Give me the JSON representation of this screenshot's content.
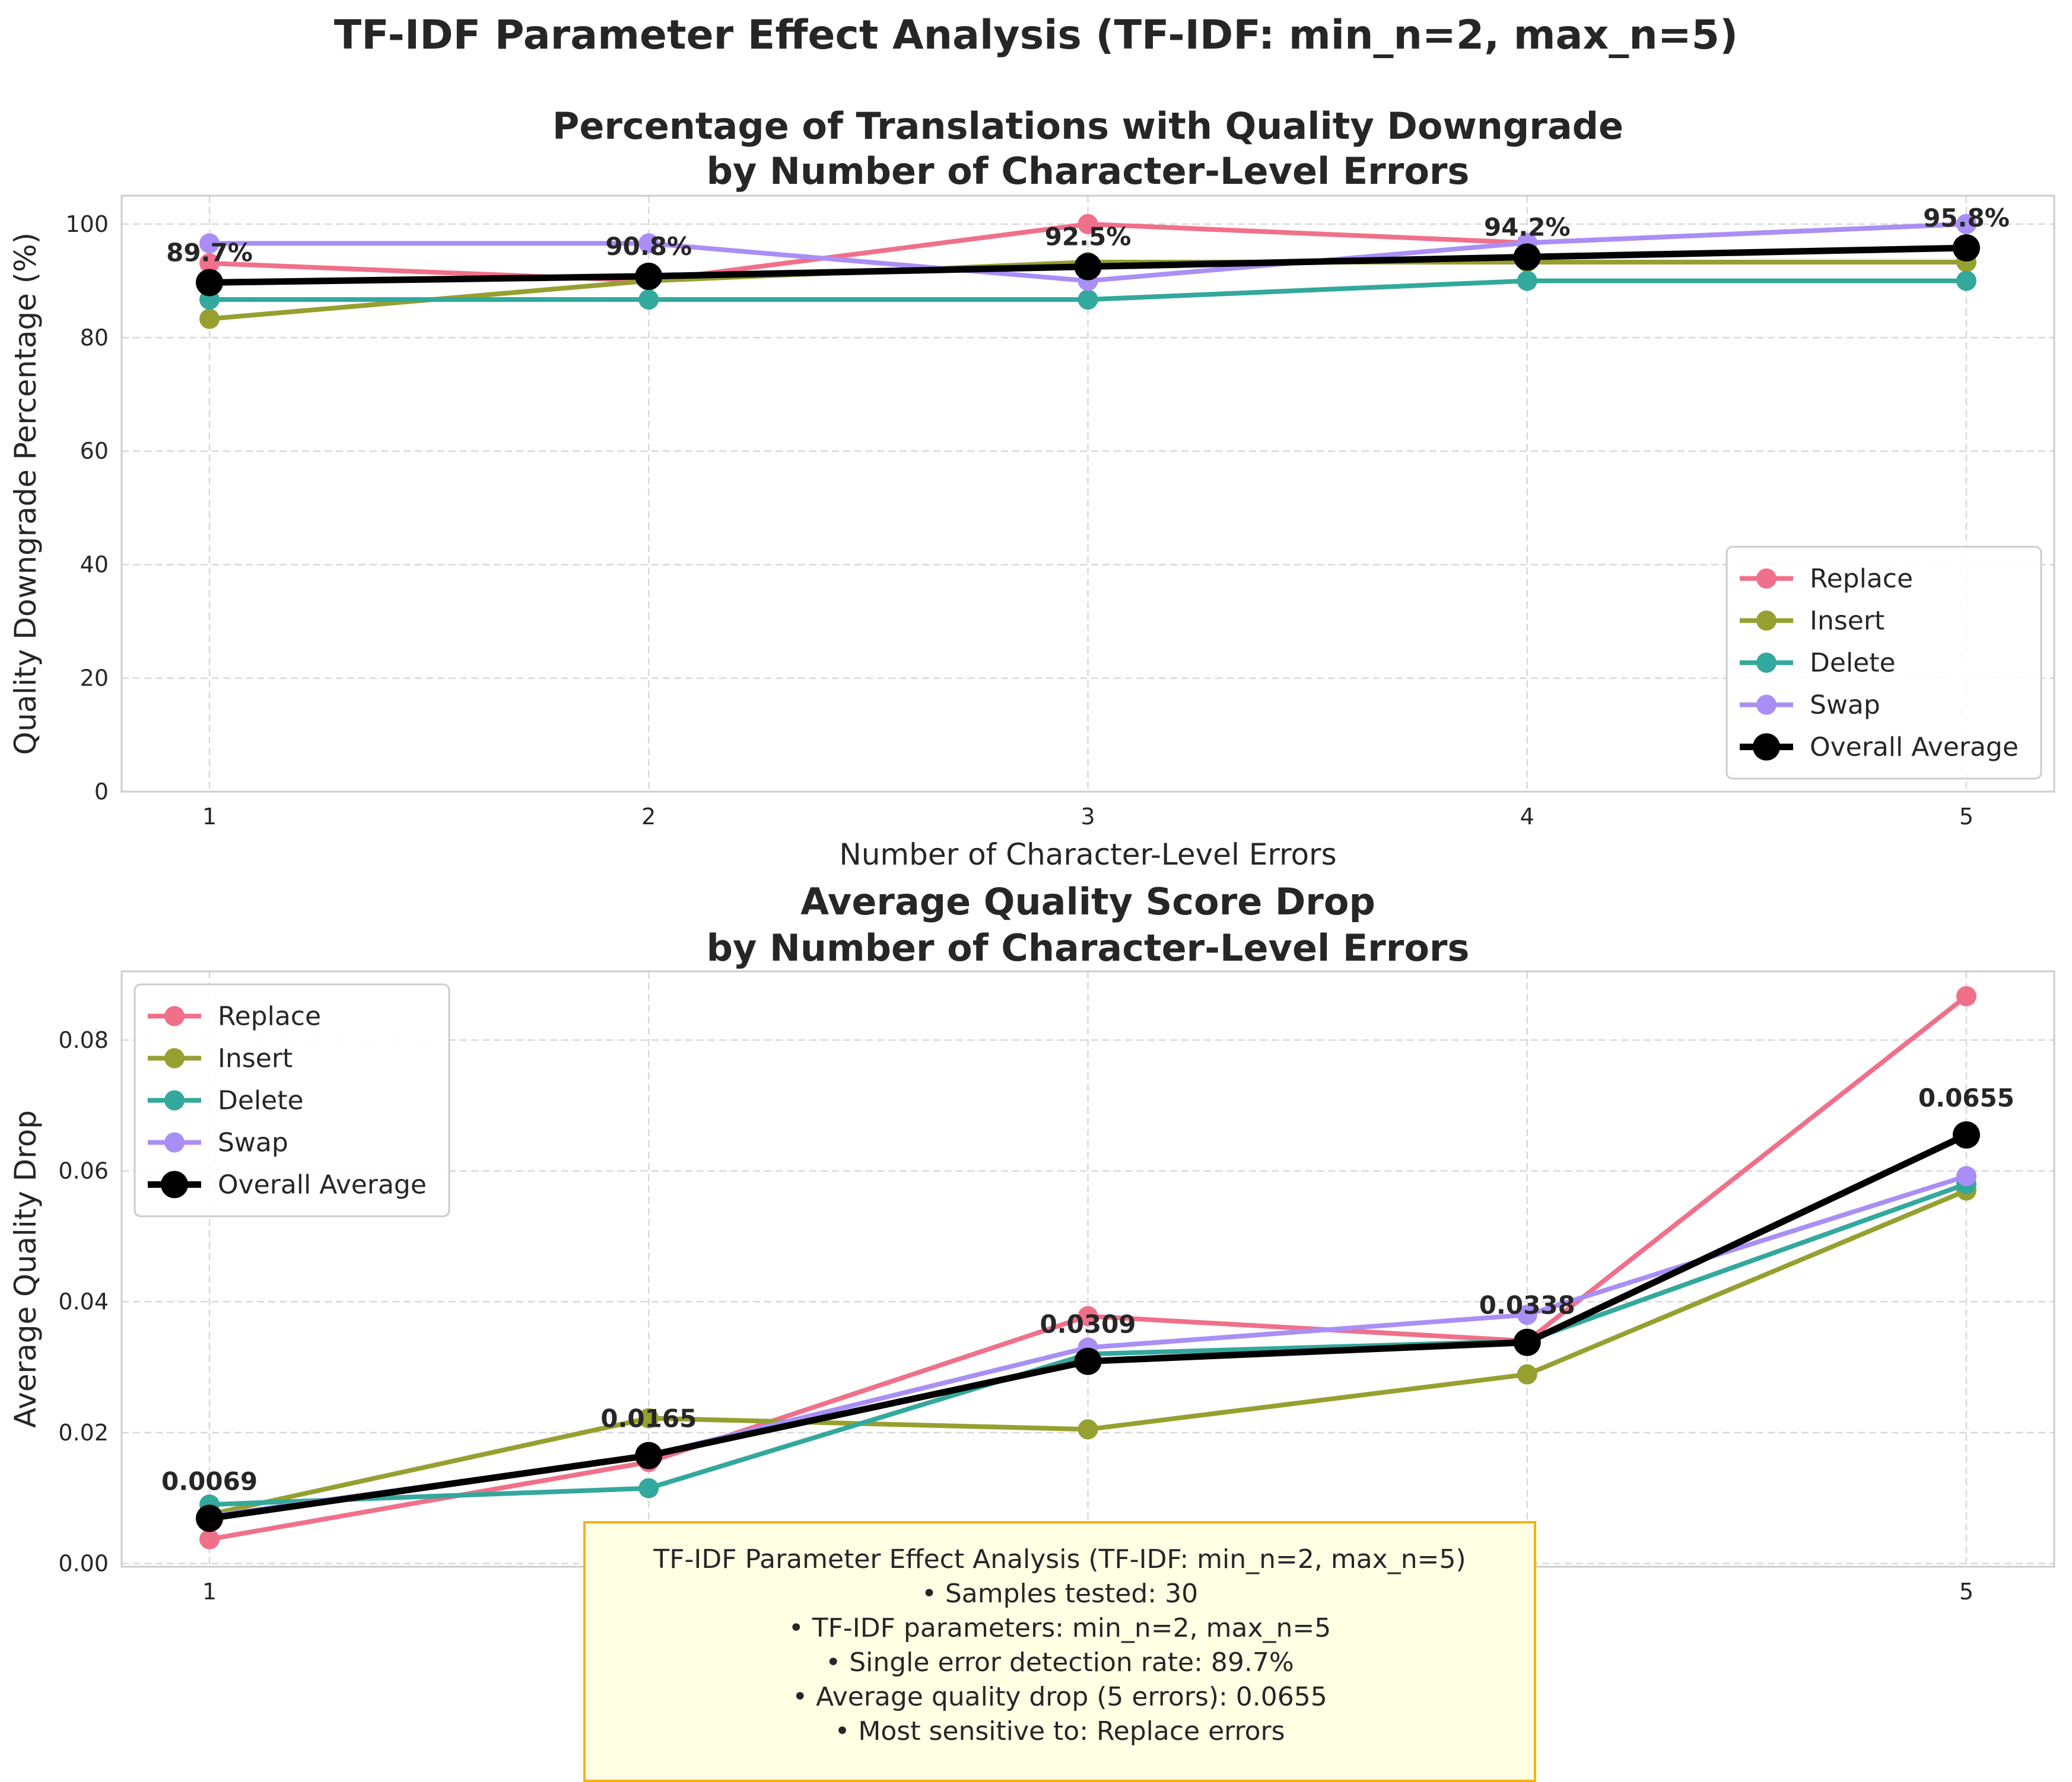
{
  "figure": {
    "suptitle": "TF-IDF Parameter Effect Analysis (TF-IDF: min_n=2, max_n=5)"
  },
  "chart_data": [
    {
      "type": "line",
      "title": "Percentage of Translations with Quality Downgrade\nby Number of Character-Level Errors",
      "title_lines": [
        "Percentage of Translations with Quality Downgrade",
        "by Number of Character-Level Errors"
      ],
      "xlabel": "Number of Character-Level Errors",
      "ylabel": "Quality Downgrade Percentage (%)",
      "x": [
        1,
        2,
        3,
        4,
        5
      ],
      "x_ticks": [
        "1",
        "2",
        "3",
        "4",
        "5"
      ],
      "y_ticks": [
        "0",
        "20",
        "40",
        "60",
        "80",
        "100"
      ],
      "xlim": [
        0.8,
        5.2
      ],
      "ylim": [
        0,
        105
      ],
      "grid": true,
      "legend_position": "lower-right",
      "series": [
        {
          "name": "Replace",
          "color": "#f0708a",
          "values": [
            93.1,
            90.0,
            100.0,
            96.7,
            100.0
          ]
        },
        {
          "name": "Insert",
          "color": "#96a030",
          "values": [
            83.3,
            90.0,
            93.3,
            93.3,
            93.3
          ]
        },
        {
          "name": "Delete",
          "color": "#33a89c",
          "values": [
            86.7,
            86.7,
            86.7,
            90.0,
            90.0
          ]
        },
        {
          "name": "Swap",
          "color": "#a98ff5",
          "values": [
            96.6,
            96.6,
            90.0,
            96.7,
            100.0
          ]
        },
        {
          "name": "Overall Average",
          "color": "#000000",
          "values": [
            89.7,
            90.8,
            92.5,
            94.2,
            95.8
          ]
        }
      ],
      "data_labels": [
        "89.7%",
        "90.8%",
        "92.5%",
        "94.2%",
        "95.8%"
      ]
    },
    {
      "type": "line",
      "title": "Average Quality Score Drop\nby Number of Character-Level Errors",
      "title_lines": [
        "Average Quality Score Drop",
        "by Number of Character-Level Errors"
      ],
      "xlabel": "Number of Character-Level Errors",
      "ylabel": "Average Quality Drop",
      "x": [
        1,
        2,
        3,
        4,
        5
      ],
      "x_ticks": [
        "1",
        "2",
        "3",
        "4",
        "5"
      ],
      "y_ticks": [
        "0.00",
        "0.02",
        "0.04",
        "0.06",
        "0.08"
      ],
      "xlim": [
        0.8,
        5.2
      ],
      "ylim": [
        -0.0005,
        0.0905
      ],
      "grid": true,
      "legend_position": "upper-left",
      "series": [
        {
          "name": "Replace",
          "color": "#f0708a",
          "values": [
            0.0037,
            0.0155,
            0.0378,
            0.034,
            0.0867
          ]
        },
        {
          "name": "Insert",
          "color": "#96a030",
          "values": [
            0.0075,
            0.0222,
            0.0205,
            0.0289,
            0.057
          ]
        },
        {
          "name": "Delete",
          "color": "#33a89c",
          "values": [
            0.009,
            0.0115,
            0.032,
            0.034,
            0.058
          ]
        },
        {
          "name": "Swap",
          "color": "#a98ff5",
          "values": [
            0.0072,
            0.0165,
            0.033,
            0.038,
            0.0592
          ]
        },
        {
          "name": "Overall Average",
          "color": "#000000",
          "values": [
            0.0069,
            0.0165,
            0.0309,
            0.0338,
            0.0655
          ]
        }
      ],
      "data_labels": [
        "0.0069",
        "0.0165",
        "0.0309",
        "0.0338",
        "0.0655"
      ]
    }
  ],
  "annotation": {
    "lines": [
      "TF-IDF Parameter Effect Analysis (TF-IDF: min_n=2, max_n=5)",
      "• Samples tested: 30",
      "• TF-IDF parameters: min_n=2, max_n=5",
      "• Single error detection rate: 89.7%",
      "• Average quality drop (5 errors): 0.0655",
      "• Most sensitive to: Replace errors"
    ]
  }
}
